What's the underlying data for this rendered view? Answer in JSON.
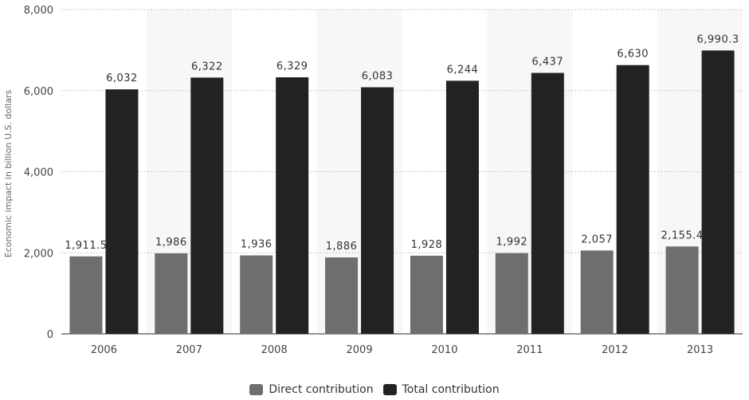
{
  "chart_data": {
    "type": "bar",
    "categories": [
      "2006",
      "2007",
      "2008",
      "2009",
      "2010",
      "2011",
      "2012",
      "2013"
    ],
    "series": [
      {
        "name": "Direct contribution",
        "color": "#6e6e6e",
        "values": [
          1911.5,
          1986,
          1936,
          1886,
          1928,
          1992,
          2057,
          2155.4
        ],
        "labels": [
          "1,911.5",
          "1,986",
          "1,936",
          "1,886",
          "1,928",
          "1,992",
          "2,057",
          "2,155.4"
        ]
      },
      {
        "name": "Total contribution",
        "color": "#222222",
        "values": [
          6032,
          6322,
          6329,
          6083,
          6244,
          6437,
          6630,
          6990.3
        ],
        "labels": [
          "6,032",
          "6,322",
          "6,329",
          "6,083",
          "6,244",
          "6,437",
          "6,630",
          "6,990.3"
        ]
      }
    ],
    "ylabel": "Economic impact in billion U.S. dollars",
    "ylim": [
      0,
      8000
    ],
    "yticks": [
      0,
      2000,
      4000,
      6000,
      8000
    ],
    "ytick_labels": [
      "0",
      "2,000",
      "4,000",
      "6,000",
      "8,000"
    ],
    "grid": true,
    "legend_position": "bottom-center"
  }
}
